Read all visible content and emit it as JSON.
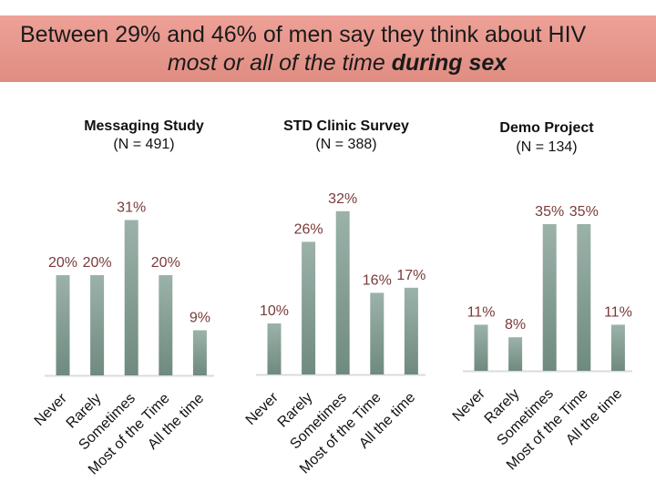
{
  "header": {
    "line1": "Between 29% and 46% of men say they think about HIV",
    "line2_plain": "most or all of the time ",
    "line2_bold": "during sex"
  },
  "colors": {
    "banner": "#e99a90",
    "bar": "#86a096",
    "value_label": "#7a3a3a"
  },
  "chart_data": [
    {
      "type": "bar",
      "title": "Messaging Study",
      "subtitle": "(N = 491)",
      "categories": [
        "Never",
        "Rarely",
        "Sometimes",
        "Most of the Time",
        "All the time"
      ],
      "values": [
        20,
        20,
        31,
        20,
        9
      ],
      "value_labels": [
        "20%",
        "20%",
        "31%",
        "20%",
        "9%"
      ],
      "unit": "%",
      "ylim": [
        0,
        40
      ],
      "grid": false,
      "legend": "none"
    },
    {
      "type": "bar",
      "title": "STD Clinic Survey",
      "subtitle": "(N = 388)",
      "categories": [
        "Never",
        "Rarely",
        "Sometimes",
        "Most of the Time",
        "All the time"
      ],
      "values": [
        10,
        26,
        32,
        16,
        17
      ],
      "value_labels": [
        "10%",
        "26%",
        "32%",
        "16%",
        "17%"
      ],
      "unit": "%",
      "ylim": [
        0,
        40
      ],
      "grid": false,
      "legend": "none"
    },
    {
      "type": "bar",
      "title": "Demo Project",
      "subtitle": "(N = 134)",
      "categories": [
        "Never",
        "Rarely",
        "Sometimes",
        "Most of the Time",
        "All the time"
      ],
      "values": [
        11,
        8,
        35,
        35,
        11
      ],
      "value_labels": [
        "11%",
        "8%",
        "35%",
        "35%",
        "11%"
      ],
      "unit": "%",
      "ylim": [
        0,
        40
      ],
      "grid": false,
      "legend": "none"
    }
  ]
}
